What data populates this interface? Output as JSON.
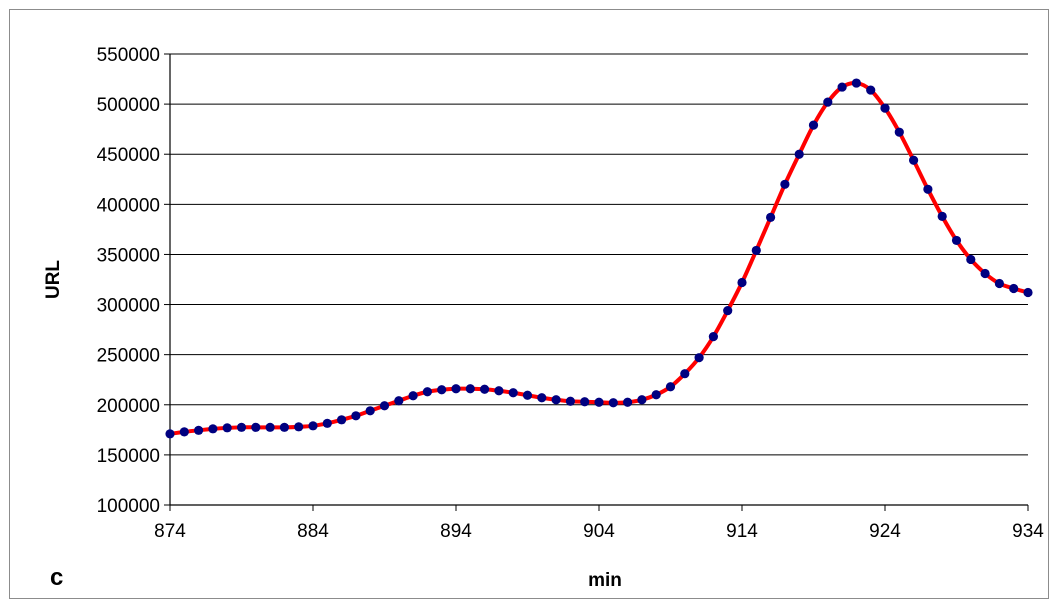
{
  "chart_data": {
    "type": "line",
    "title": "",
    "panel_label": "c",
    "xlabel": "min",
    "ylabel": "URL",
    "xlim": [
      874,
      934
    ],
    "ylim": [
      100000,
      550000
    ],
    "xticks": [
      874,
      884,
      894,
      904,
      914,
      924,
      934
    ],
    "yticks": [
      100000,
      150000,
      200000,
      250000,
      300000,
      350000,
      400000,
      450000,
      500000,
      550000
    ],
    "grid": "horizontal",
    "legend": "none",
    "colors": {
      "line": "#ff0000",
      "marker": "#000080"
    },
    "series": [
      {
        "x": [
          874,
          875,
          876,
          877,
          878,
          879,
          880,
          881,
          882,
          883,
          884,
          885,
          886,
          887,
          888,
          889,
          890,
          891,
          892,
          893,
          894,
          895,
          896,
          897,
          898,
          899,
          900,
          901,
          902,
          903,
          904,
          905,
          906,
          907,
          908,
          909,
          910,
          911,
          912,
          913,
          914,
          915,
          916,
          917,
          918,
          919,
          920,
          921,
          922,
          923,
          924,
          925,
          926,
          927,
          928,
          929,
          930,
          931,
          932,
          933,
          934
        ],
        "values": [
          171000,
          173000,
          174500,
          176000,
          177000,
          177500,
          177500,
          177500,
          177500,
          178000,
          179000,
          181500,
          185000,
          189000,
          194000,
          199000,
          204000,
          209000,
          213000,
          215000,
          216000,
          216000,
          215500,
          214000,
          212000,
          209500,
          207000,
          205000,
          203500,
          203000,
          202500,
          202000,
          202500,
          205000,
          210000,
          218000,
          231000,
          247000,
          268000,
          294000,
          322000,
          354000,
          387000,
          420000,
          450000,
          479000,
          502000,
          517000,
          521000,
          514000,
          496000,
          472000,
          444000,
          415000,
          388000,
          364000,
          345000,
          331000,
          321000,
          316000,
          312000
        ]
      }
    ]
  }
}
